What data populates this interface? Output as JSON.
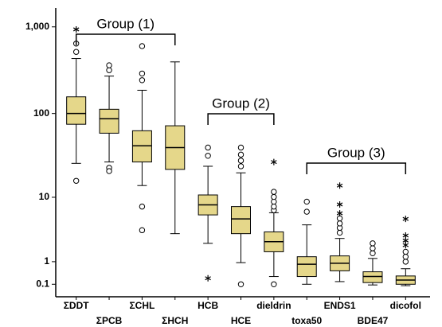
{
  "chart_data": {
    "type": "box",
    "yscale": "symlog",
    "ylim": [
      -0.21,
      1650
    ],
    "yticks": [
      {
        "value": 1000,
        "label": "1,000"
      },
      100,
      10,
      1,
      0.1
    ],
    "color": "#e5d78a",
    "annotations": [
      "Group (1)",
      "Group (2)",
      "Group (3)"
    ],
    "categories": [
      "ΣDDT",
      "ΣPCB",
      "ΣCHL",
      "ΣHCH",
      "HCB",
      "HCE",
      "dieldrin",
      "toxa50",
      "ENDS1",
      "BDE47",
      "dicofol"
    ],
    "boxes": [
      {
        "min": 26,
        "q1": 75,
        "median": 100,
        "q3": 156,
        "max": 432,
        "outliers": [
          16,
          515,
          642
        ],
        "extremes": [
          935
        ]
      },
      {
        "min": 27,
        "q1": 59,
        "median": 87,
        "q3": 112,
        "max": 271,
        "outliers": [
          23,
          21,
          317,
          361
        ],
        "extremes": []
      },
      {
        "min": 14,
        "q1": 27,
        "median": 42,
        "q3": 63,
        "max": 186,
        "outliers": [
          7.6,
          3.6,
          243,
          290,
          600
        ],
        "extremes": []
      },
      {
        "min": 3.2,
        "q1": 22,
        "median": 40,
        "q3": 72,
        "max": 395,
        "outliers": [],
        "extremes": []
      },
      {
        "min": 2.25,
        "q1": 5.9,
        "median": 8,
        "q3": 10.7,
        "max": 24,
        "outliers": [
          32,
          40
        ],
        "extremes": [
          0.29
        ]
      },
      {
        "min": 0.95,
        "q1": 3.2,
        "median": 5.2,
        "q3": 7.6,
        "max": 20,
        "outliers": [
          0.1,
          24,
          28,
          33,
          40
        ],
        "extremes": []
      },
      {
        "min": 0.35,
        "q1": 1.6,
        "median": 2.4,
        "q3": 3.4,
        "max": 6.3,
        "outliers": [
          0.1,
          6.8,
          7.6,
          8.8,
          10.1,
          11.7
        ],
        "extremes": [
          27
        ]
      },
      {
        "min": 0.1,
        "q1": 0.35,
        "median": 0.87,
        "q3": 1.28,
        "max": 4.3,
        "outliers": [
          6.5,
          8.8
        ],
        "extremes": []
      },
      {
        "min": 0.18,
        "q1": 0.57,
        "median": 0.92,
        "q3": 1.33,
        "max": 2.7,
        "outliers": [
          3.3,
          3.9,
          4.5,
          5.3
        ],
        "extremes": [
          6.2,
          8.1,
          14
        ]
      },
      {
        "min": 0.08,
        "q1": 0.15,
        "median": 0.35,
        "q3": 0.53,
        "max": 1.18,
        "outliers": [
          1.5,
          1.85,
          2.25
        ],
        "extremes": []
      },
      {
        "min": 0.06,
        "q1": 0.1,
        "median": 0.23,
        "q3": 0.37,
        "max": 0.66,
        "outliers": [
          1,
          1.28,
          1.6
        ],
        "extremes": [
          2.1,
          2.5,
          3,
          5.2
        ]
      }
    ]
  }
}
